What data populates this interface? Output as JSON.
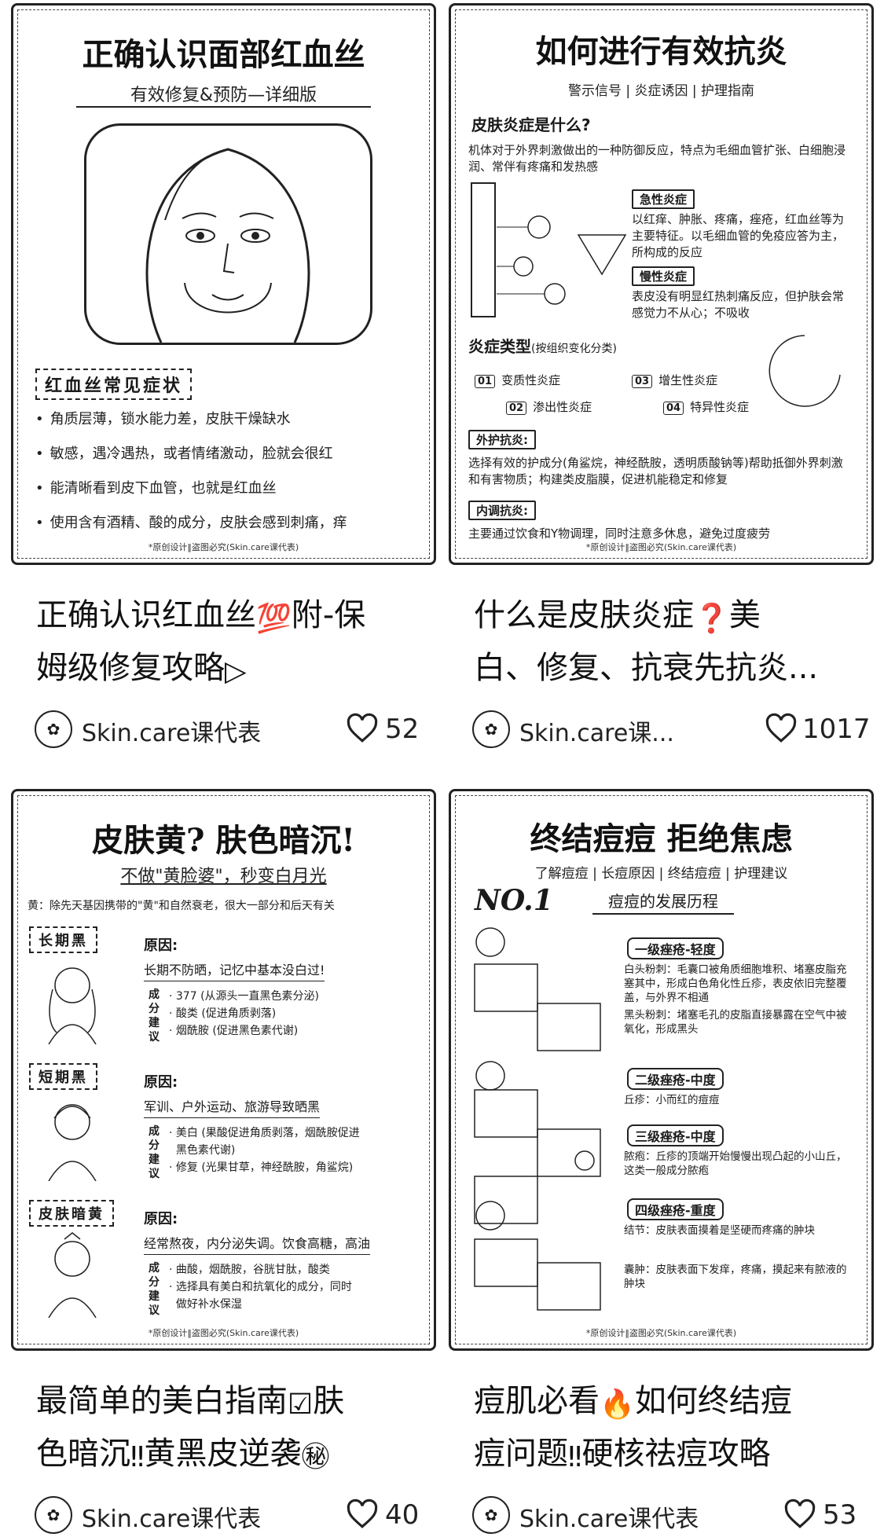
{
  "feed": {
    "cards": [
      {
        "thumb": {
          "title": "正确认识面部红血丝",
          "subtitle": "有效修复&预防—详细版",
          "section": "红血丝常见症状",
          "bullets": [
            "角质层薄，锁水能力差，皮肤干燥缺水",
            "敏感，遇冷遇热，或者情绪激动，脸就会很红",
            "能清晰看到皮下血管，也就是红血丝",
            "使用含有酒精、酸的成分，皮肤会感到刺痛，痒"
          ],
          "footer": "*原创设计‖盗图必究(Skin.care课代表)"
        },
        "caption_parts": [
          "正确认识红血丝",
          "附-保",
          "姆级修复攻略"
        ],
        "caption_icons": [
          "100-icon",
          "play-icon"
        ],
        "author": "Skin.care课代表",
        "likes": "52"
      },
      {
        "thumb": {
          "title": "如何进行有效抗炎",
          "subtitle": "警示信号 | 炎症诱因 | 护理指南",
          "q_title": "皮肤炎症是什么?",
          "q_text": "机体对于外界刺激做出的一种防御反应，特点为毛细血管扩张、白细胞浸润、常伴有疼痛和发热感",
          "acute_label": "急性炎症",
          "acute_text": "以红痒、肿胀、疼痛，痤疮，红血丝等为主要特征。以毛细血管的免疫应答为主，所构成的反应",
          "chronic_label": "慢性炎症",
          "chronic_text": "表皮没有明显红热刺痛反应，但护肤会常感觉力不从心；不吸收",
          "types_title": "炎症类型",
          "types_note": "(按组织变化分类)",
          "types": [
            {
              "num": "01",
              "label": "变质性炎症"
            },
            {
              "num": "03",
              "label": "增生性炎症"
            },
            {
              "num": "02",
              "label": "渗出性炎症"
            },
            {
              "num": "04",
              "label": "特异性炎症"
            }
          ],
          "external_label": "外护抗炎:",
          "external_text": "选择有效的护成分(角鲨烷，神经酰胺，透明质酸钠等)帮助抵御外界刺激和有害物质；构建类皮脂膜，促进机能稳定和修复",
          "internal_label": "内调抗炎:",
          "internal_text": "主要通过饮食和Y物调理，同时注意多休息，避免过度疲劳",
          "footer": "*原创设计‖盗图必究(Skin.care课代表)"
        },
        "caption_parts": [
          "什么是皮肤炎症",
          "美",
          "白、修复、抗衰先抗炎..."
        ],
        "caption_icons": [
          "question-icon"
        ],
        "author": "Skin.care课...",
        "likes": "1017"
      },
      {
        "thumb": {
          "title": "皮肤黄? 肤色暗沉!",
          "subtitle": "不做\"黄脸婆\"，秒变白月光",
          "intro": "黄：除先天基因携带的\"黄\"和自然衰老，很大一部分和后天有关",
          "groups": [
            {
              "tag": "长期黑",
              "reason_label": "原因:",
              "reason": "长期不防晒，记忆中基本没白过!",
              "advice_label": "成分建议",
              "advice": [
                "· 377 (从源头一直黑色素分泌)",
                "· 酸类 (促进角质剥落)",
                "· 烟酰胺 (促进黑色素代谢)"
              ]
            },
            {
              "tag": "短期黑",
              "reason_label": "原因:",
              "reason": "军训、户外运动、旅游导致晒黑",
              "advice_label": "成分建议",
              "advice": [
                "· 美白 (果酸促进角质剥落，烟酰胺促进",
                "  黑色素代谢)",
                "· 修复 (光果甘草，神经酰胺，角鲨烷)"
              ]
            },
            {
              "tag": "皮肤暗黄",
              "reason_label": "原因:",
              "reason": "经常熬夜，内分泌失调。饮食高糖，高油",
              "advice_label": "成分建议",
              "advice": [
                "· 曲酸，烟酰胺，谷胱甘肽，酸类",
                "· 选择具有美白和抗氧化的成分，同时",
                "  做好补水保湿"
              ]
            }
          ],
          "footer": "*原创设计‖盗图必究(Skin.care课代表)"
        },
        "caption_parts": [
          "最简单的美白指南",
          "肤",
          "色暗沉",
          "黄黑皮逆袭"
        ],
        "caption_icons": [
          "check-box-icon",
          "double-exclamation-icon",
          "secret-icon"
        ],
        "author": "Skin.care课代表",
        "likes": "40"
      },
      {
        "thumb": {
          "title": "终结痘痘 拒绝焦虑",
          "subtitle": "了解痘痘 | 长痘原因 | 终结痘痘 | 护理建议",
          "no_label": "NO.1",
          "no_title": "痘痘的发展历程",
          "stages": [
            {
              "label": "一级痤疮-轻度",
              "items": [
                "白头粉刺：毛囊口被角质细胞堆积、堵塞皮脂充塞其中，形成白色角化性丘疹，表皮依旧完整覆盖，与外界不相通",
                "黑头粉刺：堵塞毛孔的皮脂直接暴露在空气中被氧化，形成黑头"
              ]
            },
            {
              "label": "二级痤疮-中度",
              "items": [
                "丘疹：小而红的痘痘"
              ]
            },
            {
              "label": "三级痤疮-中度",
              "items": [
                "脓疱：丘疹的顶端开始慢慢出现凸起的小山丘，这类一般成分脓疱"
              ]
            },
            {
              "label": "四级痤疮-重度",
              "items": [
                "结节：皮肤表面摸着是坚硬而疼痛的肿块",
                "囊肿：皮肤表面下发痒，疼痛，摸起来有脓液的肿块"
              ]
            }
          ],
          "footer": "*原创设计‖盗图必究(Skin.care课代表)"
        },
        "caption_parts": [
          "痘肌必看",
          "如何终结痘",
          "痘问题",
          "硬核祛痘攻略"
        ],
        "caption_icons": [
          "fire-icon",
          "double-exclamation-icon"
        ],
        "author": "Skin.care课代表",
        "likes": "53"
      }
    ]
  }
}
